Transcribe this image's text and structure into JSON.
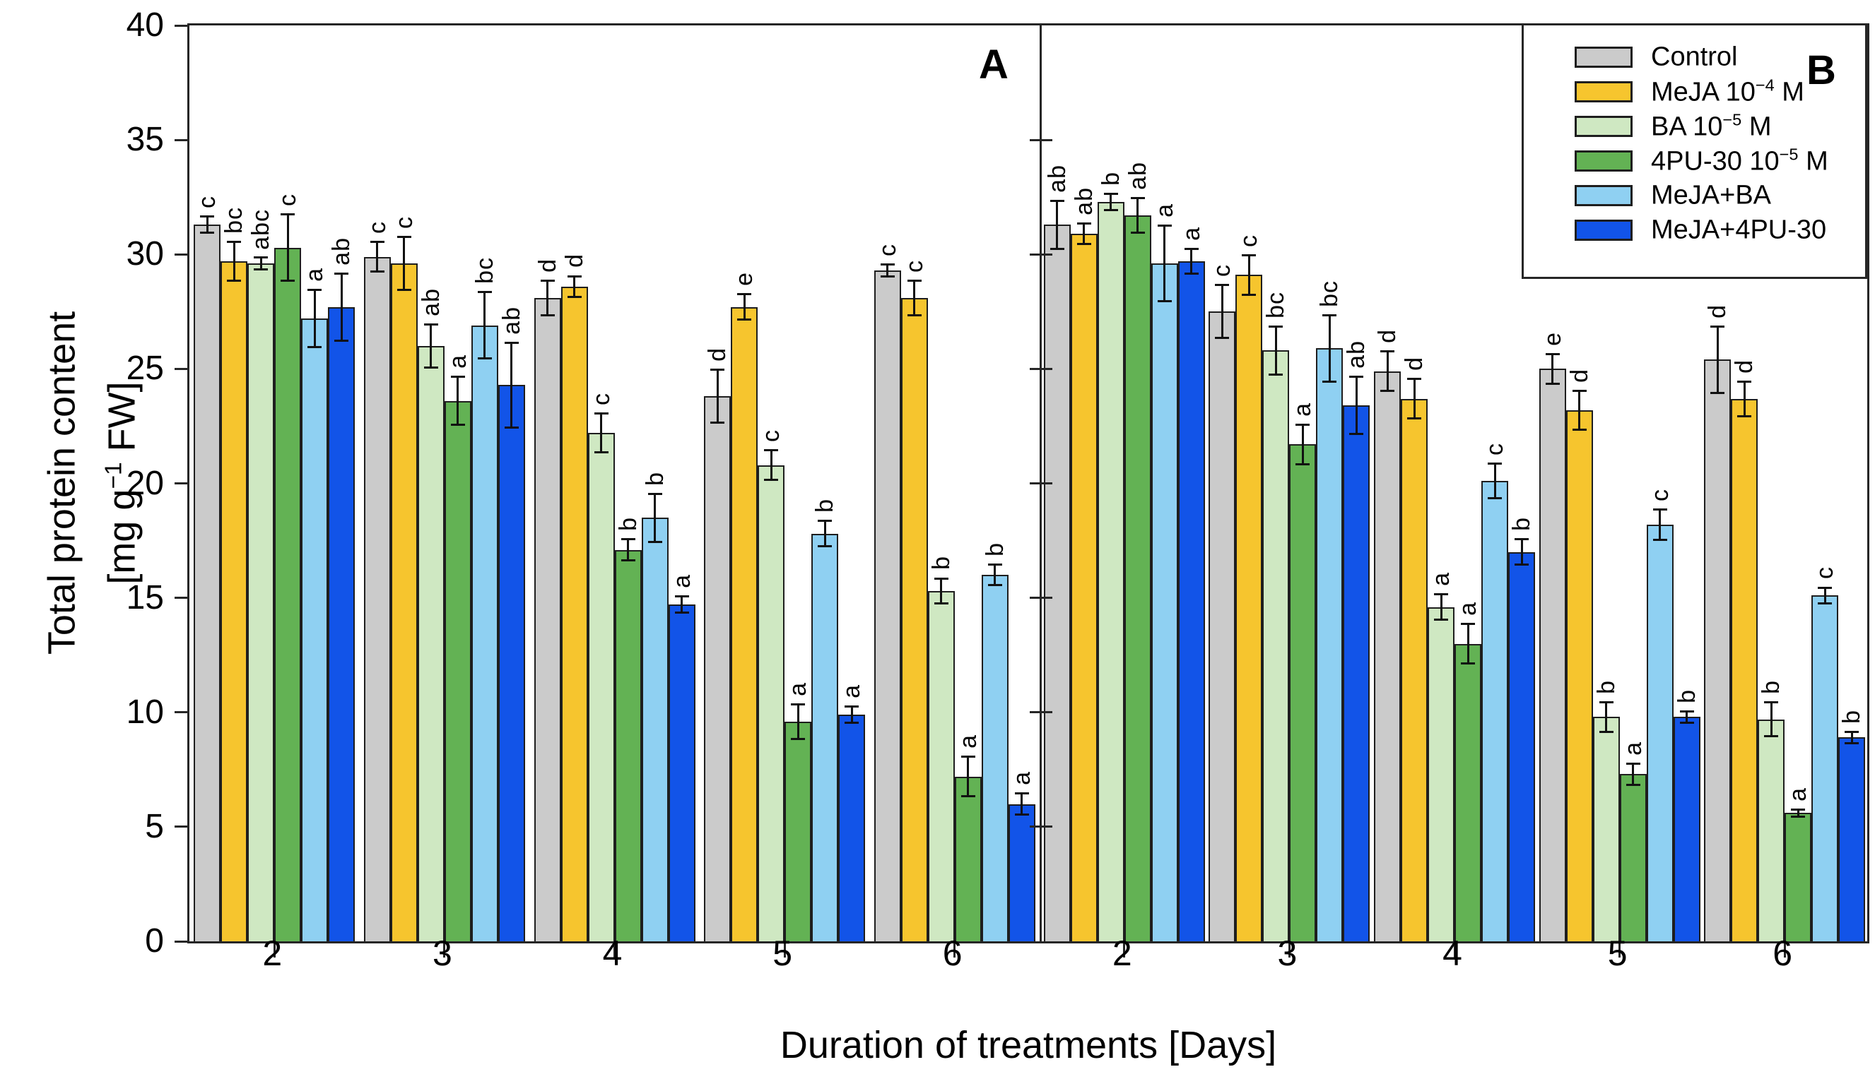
{
  "figure": {
    "y_axis": {
      "title_line1": "Total protein content",
      "title_unit_pre": "[mg g",
      "title_unit_sup": "−1",
      "title_unit_post": " FW]"
    },
    "x_axis": {
      "title": "Duration of treatments [Days]"
    },
    "panel_labels": {
      "a": "A",
      "b": "B"
    },
    "legend": {
      "items": [
        {
          "label_pre": "Control",
          "label_sup": "",
          "label_post": ""
        },
        {
          "label_pre": "MeJA 10",
          "label_sup": "−4",
          "label_post": " M"
        },
        {
          "label_pre": "BA 10",
          "label_sup": "−5",
          "label_post": " M"
        },
        {
          "label_pre": "4PU-30 10",
          "label_sup": "−5",
          "label_post": " M"
        },
        {
          "label_pre": "MeJA+BA",
          "label_sup": "",
          "label_post": ""
        },
        {
          "label_pre": "MeJA+4PU-30",
          "label_sup": "",
          "label_post": ""
        }
      ]
    }
  },
  "chart_data": {
    "type": "bar",
    "title": "",
    "xlabel": "Duration of treatments [Days]",
    "ylabel": "Total protein content [mg g-1 FW]",
    "ylim": [
      0,
      40
    ],
    "y_ticks": [
      0,
      5,
      10,
      15,
      20,
      25,
      30,
      35,
      40
    ],
    "categories": [
      "2",
      "3",
      "4",
      "5",
      "6"
    ],
    "grid": false,
    "legend_position": "top-right",
    "series_names": [
      "Control",
      "MeJA 10^-4 M",
      "BA 10^-5 M",
      "4PU-30 10^-5 M",
      "MeJA+BA",
      "MeJA+4PU-30"
    ],
    "colors": [
      "#cbcbcb",
      "#f6c52e",
      "#cfe8c2",
      "#63b254",
      "#8fd0f2",
      "#1254e8"
    ],
    "panels": [
      {
        "label": "A",
        "series": [
          {
            "name": "Control",
            "values": [
              31.3,
              29.9,
              28.1,
              23.8,
              29.3
            ],
            "errors": [
              0.4,
              0.7,
              0.8,
              1.2,
              0.3
            ],
            "letters": [
              "c",
              "c",
              "d",
              "d",
              "c"
            ]
          },
          {
            "name": "MeJA 10^-4 M",
            "values": [
              29.7,
              29.6,
              28.6,
              27.7,
              28.1
            ],
            "errors": [
              0.9,
              1.2,
              0.5,
              0.6,
              0.8
            ],
            "letters": [
              "bc",
              "c",
              "d",
              "e",
              "c"
            ]
          },
          {
            "name": "BA 10^-5 M",
            "values": [
              29.6,
              26.0,
              22.2,
              20.8,
              15.3
            ],
            "errors": [
              0.3,
              1.0,
              0.9,
              0.7,
              0.6
            ],
            "letters": [
              "abc",
              "ab",
              "c",
              "c",
              "b"
            ]
          },
          {
            "name": "4PU-30 10^-5 M",
            "values": [
              30.3,
              23.6,
              17.1,
              9.6,
              7.2
            ],
            "errors": [
              1.5,
              1.1,
              0.5,
              0.8,
              0.9
            ],
            "letters": [
              "c",
              "a",
              "b",
              "a",
              "a"
            ]
          },
          {
            "name": "MeJA+BA",
            "values": [
              27.2,
              26.9,
              18.5,
              17.8,
              16.0
            ],
            "errors": [
              1.3,
              1.5,
              1.1,
              0.6,
              0.5
            ],
            "letters": [
              "a",
              "bc",
              "b",
              "b",
              "b"
            ]
          },
          {
            "name": "MeJA+4PU-30",
            "values": [
              27.7,
              24.3,
              14.7,
              9.9,
              6.0
            ],
            "errors": [
              1.5,
              1.9,
              0.4,
              0.4,
              0.5
            ],
            "letters": [
              "ab",
              "ab",
              "a",
              "a",
              "a"
            ]
          }
        ]
      },
      {
        "label": "B",
        "series": [
          {
            "name": "Control",
            "values": [
              31.3,
              27.5,
              24.9,
              25.0,
              25.4
            ],
            "errors": [
              1.1,
              1.2,
              0.9,
              0.7,
              1.5
            ],
            "letters": [
              "ab",
              "c",
              "d",
              "e",
              "d"
            ]
          },
          {
            "name": "MeJA 10^-4 M",
            "values": [
              30.9,
              29.1,
              23.7,
              23.2,
              23.7
            ],
            "errors": [
              0.5,
              0.9,
              0.9,
              0.9,
              0.8
            ],
            "letters": [
              "ab",
              "c",
              "d",
              "d",
              "d"
            ]
          },
          {
            "name": "BA 10^-5 M",
            "values": [
              32.3,
              25.8,
              14.6,
              9.8,
              9.7
            ],
            "errors": [
              0.4,
              1.1,
              0.6,
              0.7,
              0.8
            ],
            "letters": [
              "b",
              "bc",
              "a",
              "b",
              "b"
            ]
          },
          {
            "name": "4PU-30 10^-5 M",
            "values": [
              31.7,
              21.7,
              13.0,
              7.3,
              5.6
            ],
            "errors": [
              0.8,
              0.9,
              0.9,
              0.5,
              0.2
            ],
            "letters": [
              "ab",
              "a",
              "a",
              "a",
              "a"
            ]
          },
          {
            "name": "MeJA+BA",
            "values": [
              29.6,
              25.9,
              20.1,
              18.2,
              15.1
            ],
            "errors": [
              1.7,
              1.5,
              0.8,
              0.7,
              0.4
            ],
            "letters": [
              "a",
              "bc",
              "c",
              "c",
              "c"
            ]
          },
          {
            "name": "MeJA+4PU-30",
            "values": [
              29.7,
              23.4,
              17.0,
              9.8,
              8.9
            ],
            "errors": [
              0.6,
              1.3,
              0.6,
              0.3,
              0.3
            ],
            "letters": [
              "a",
              "ab",
              "b",
              "b",
              "b"
            ]
          }
        ]
      }
    ]
  }
}
